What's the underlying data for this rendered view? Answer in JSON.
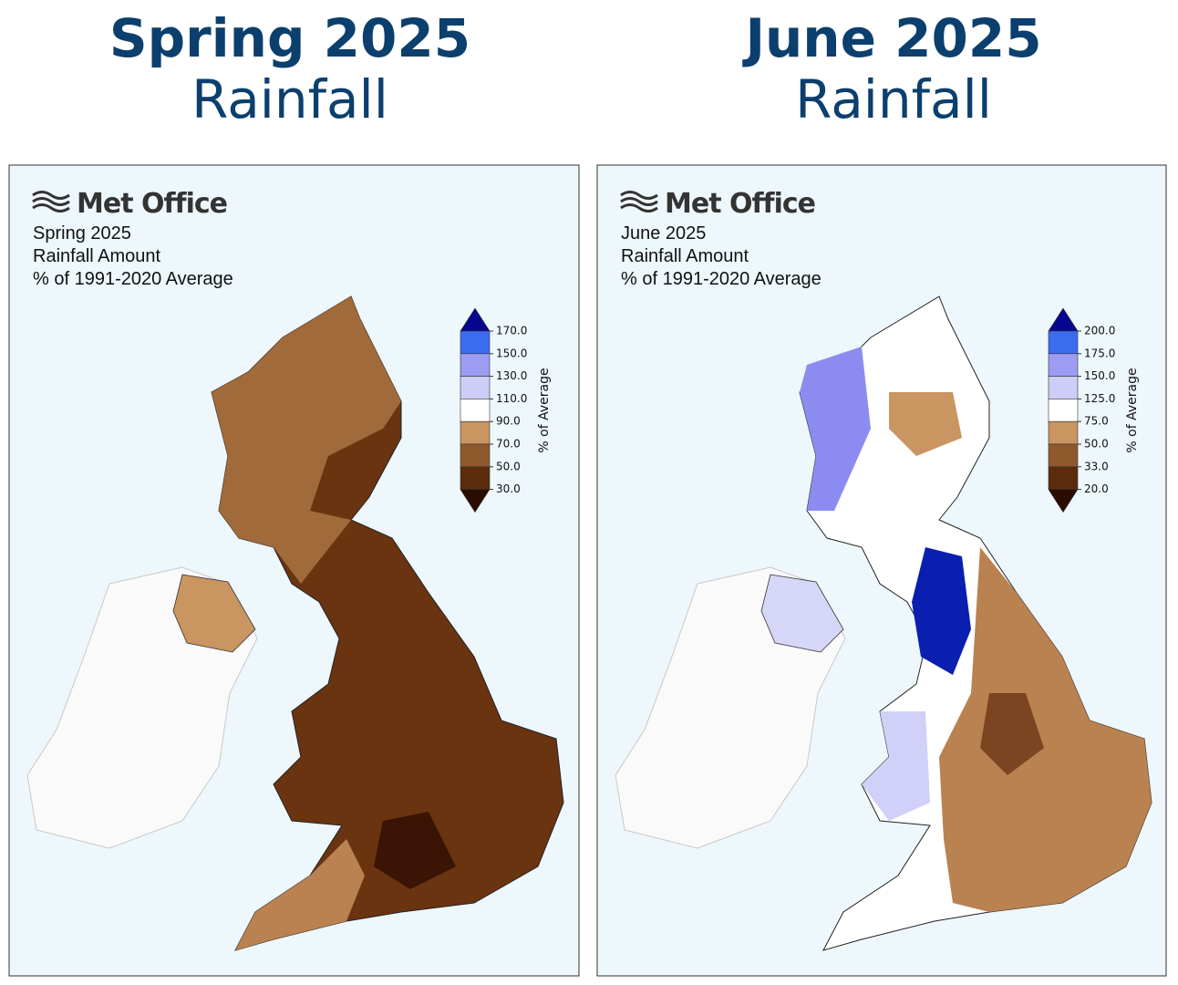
{
  "panels": [
    {
      "title": [
        "Spring 2025",
        "Rainfall"
      ],
      "logo": "Met Office",
      "caption": [
        "Spring 2025",
        "Rainfall Amount",
        "% of 1991-2020 Average"
      ],
      "colorbar": {
        "label": "% of Average",
        "ticks": [
          "170.0",
          "150.0",
          "130.0",
          "110.0",
          "90.0",
          "70.0",
          "50.0",
          "30.0"
        ],
        "colors": [
          "#06068f",
          "#3b6cf0",
          "#9b9cf2",
          "#cdcdf7",
          "#ffffff",
          "#c99560",
          "#8e5a2d",
          "#5b2b0b",
          "#2b0c00"
        ]
      }
    },
    {
      "title": [
        "June 2025",
        "Rainfall"
      ],
      "logo": "Met Office",
      "caption": [
        "June 2025",
        "Rainfall Amount",
        "% of 1991-2020 Average"
      ],
      "colorbar": {
        "label": "% of Average",
        "ticks": [
          "200.0",
          "175.0",
          "150.0",
          "125.0",
          "75.0",
          "50.0",
          "33.0",
          "20.0"
        ],
        "colors": [
          "#06068f",
          "#3b6cf0",
          "#9b9cf2",
          "#cdcdf7",
          "#ffffff",
          "#c99560",
          "#8e5a2d",
          "#5b2b0b",
          "#2b0c00"
        ]
      }
    }
  ]
}
